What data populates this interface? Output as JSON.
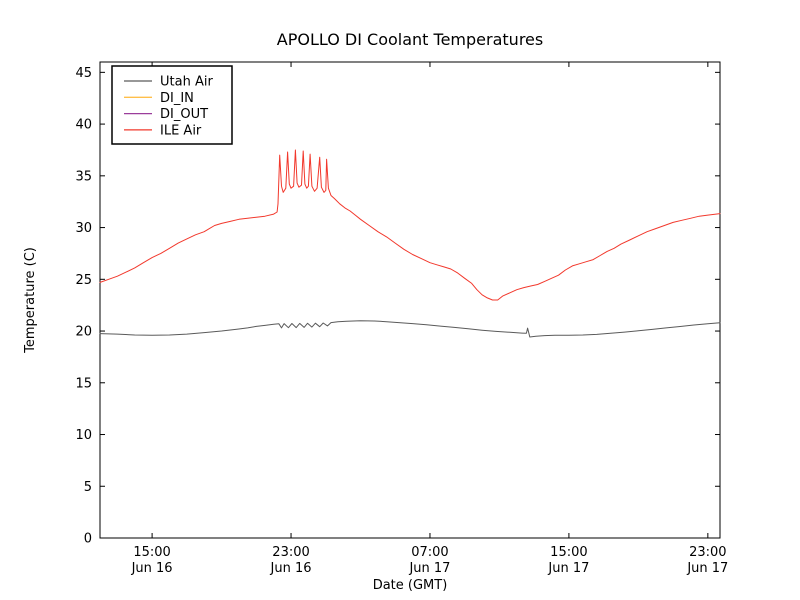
{
  "title": "APOLLO DI Coolant Temperatures",
  "axes": {
    "xlabel": "Date (GMT)",
    "ylabel": "Temperature (C)",
    "background": "#ffffff",
    "frame_color": "#000000"
  },
  "legend": {
    "position": "upper left",
    "entries": [
      "Utah Air",
      "DI_IN",
      "DI_OUT",
      "ILE Air"
    ]
  },
  "chart_data": {
    "type": "line",
    "title": "APOLLO DI Coolant Temperatures",
    "xlabel": "Date (GMT)",
    "ylabel": "Temperature (C)",
    "grid": false,
    "legend_position": "upper left",
    "x_unit": "hours since Jun 16 12:00 GMT",
    "xlim": [
      0,
      35.7
    ],
    "ylim": [
      0,
      46
    ],
    "yticks": [
      0,
      5,
      10,
      15,
      20,
      25,
      30,
      35,
      40,
      45
    ],
    "xticks": [
      {
        "hour": 3,
        "time": "15:00",
        "date": "Jun 16"
      },
      {
        "hour": 11,
        "time": "23:00",
        "date": "Jun 16"
      },
      {
        "hour": 19,
        "time": "07:00",
        "date": "Jun 17"
      },
      {
        "hour": 27,
        "time": "15:00",
        "date": "Jun 17"
      },
      {
        "hour": 35,
        "time": "23:00",
        "date": "Jun 17"
      }
    ],
    "series": [
      {
        "name": "Utah Air",
        "color": "#5a5a5a",
        "points": [
          [
            0,
            19.75
          ],
          [
            1,
            19.7
          ],
          [
            2,
            19.62
          ],
          [
            3,
            19.6
          ],
          [
            4,
            19.62
          ],
          [
            5,
            19.7
          ],
          [
            6,
            19.85
          ],
          [
            7,
            20.0
          ],
          [
            7.5,
            20.1
          ],
          [
            8,
            20.2
          ],
          [
            8.5,
            20.3
          ],
          [
            9,
            20.45
          ],
          [
            9.5,
            20.55
          ],
          [
            10,
            20.65
          ],
          [
            10.3,
            20.7
          ],
          [
            10.45,
            20.3
          ],
          [
            10.6,
            20.72
          ],
          [
            10.85,
            20.32
          ],
          [
            11.05,
            20.73
          ],
          [
            11.3,
            20.33
          ],
          [
            11.5,
            20.74
          ],
          [
            11.75,
            20.35
          ],
          [
            11.95,
            20.75
          ],
          [
            12.2,
            20.38
          ],
          [
            12.4,
            20.76
          ],
          [
            12.65,
            20.42
          ],
          [
            12.85,
            20.78
          ],
          [
            13.1,
            20.5
          ],
          [
            13.3,
            20.82
          ],
          [
            13.7,
            20.9
          ],
          [
            14.2,
            20.95
          ],
          [
            15.0,
            21.0
          ],
          [
            15.8,
            20.97
          ],
          [
            16.5,
            20.9
          ],
          [
            17.2,
            20.82
          ],
          [
            18.0,
            20.72
          ],
          [
            18.8,
            20.6
          ],
          [
            19.6,
            20.48
          ],
          [
            20.4,
            20.35
          ],
          [
            21.2,
            20.22
          ],
          [
            22.0,
            20.08
          ],
          [
            22.8,
            19.97
          ],
          [
            23.6,
            19.88
          ],
          [
            24.3,
            19.8
          ],
          [
            24.55,
            19.78
          ],
          [
            24.62,
            20.28
          ],
          [
            24.75,
            19.42
          ],
          [
            25.1,
            19.5
          ],
          [
            25.6,
            19.56
          ],
          [
            26.2,
            19.6
          ],
          [
            27.0,
            19.6
          ],
          [
            27.8,
            19.62
          ],
          [
            28.6,
            19.68
          ],
          [
            29.4,
            19.78
          ],
          [
            30.2,
            19.9
          ],
          [
            31.0,
            20.02
          ],
          [
            31.8,
            20.16
          ],
          [
            32.6,
            20.3
          ],
          [
            33.4,
            20.44
          ],
          [
            34.2,
            20.58
          ],
          [
            35.0,
            20.7
          ],
          [
            35.7,
            20.8
          ]
        ]
      },
      {
        "name": "DI_IN",
        "color": "#ffbf4a",
        "points": []
      },
      {
        "name": "DI_OUT",
        "color": "#9b3d9b",
        "points": []
      },
      {
        "name": "ILE Air",
        "color": "#f2382c",
        "points": [
          [
            0,
            24.7
          ],
          [
            0.5,
            25.0
          ],
          [
            1,
            25.3
          ],
          [
            1.5,
            25.7
          ],
          [
            2,
            26.1
          ],
          [
            2.5,
            26.6
          ],
          [
            3,
            27.1
          ],
          [
            3.5,
            27.5
          ],
          [
            4,
            28.0
          ],
          [
            4.5,
            28.5
          ],
          [
            5,
            28.9
          ],
          [
            5.5,
            29.3
          ],
          [
            6,
            29.6
          ],
          [
            6.3,
            29.9
          ],
          [
            6.6,
            30.2
          ],
          [
            7,
            30.4
          ],
          [
            7.5,
            30.6
          ],
          [
            8,
            30.8
          ],
          [
            8.5,
            30.9
          ],
          [
            9,
            31.0
          ],
          [
            9.5,
            31.1
          ],
          [
            10.0,
            31.3
          ],
          [
            10.2,
            31.5
          ],
          [
            10.25,
            32.3
          ],
          [
            10.35,
            37.0
          ],
          [
            10.45,
            34.0
          ],
          [
            10.55,
            33.4
          ],
          [
            10.7,
            33.8
          ],
          [
            10.8,
            37.3
          ],
          [
            10.9,
            34.2
          ],
          [
            11.0,
            33.8
          ],
          [
            11.15,
            34.0
          ],
          [
            11.25,
            37.5
          ],
          [
            11.35,
            34.3
          ],
          [
            11.45,
            33.9
          ],
          [
            11.6,
            34.1
          ],
          [
            11.7,
            37.4
          ],
          [
            11.8,
            34.2
          ],
          [
            11.9,
            33.8
          ],
          [
            12.0,
            34.0
          ],
          [
            12.1,
            37.1
          ],
          [
            12.2,
            34.0
          ],
          [
            12.35,
            33.5
          ],
          [
            12.5,
            33.8
          ],
          [
            12.65,
            36.8
          ],
          [
            12.75,
            33.9
          ],
          [
            12.9,
            33.4
          ],
          [
            13.0,
            33.6
          ],
          [
            13.05,
            36.6
          ],
          [
            13.15,
            33.8
          ],
          [
            13.3,
            33.1
          ],
          [
            13.5,
            32.8
          ],
          [
            13.8,
            32.3
          ],
          [
            14.1,
            31.9
          ],
          [
            14.4,
            31.6
          ],
          [
            14.7,
            31.2
          ],
          [
            15.0,
            30.8
          ],
          [
            15.5,
            30.2
          ],
          [
            16.0,
            29.6
          ],
          [
            16.5,
            29.1
          ],
          [
            17.0,
            28.5
          ],
          [
            17.5,
            27.9
          ],
          [
            18.0,
            27.4
          ],
          [
            18.5,
            27.0
          ],
          [
            19.0,
            26.6
          ],
          [
            19.4,
            26.4
          ],
          [
            19.8,
            26.2
          ],
          [
            20.2,
            26.0
          ],
          [
            20.6,
            25.6
          ],
          [
            21.0,
            25.1
          ],
          [
            21.4,
            24.6
          ],
          [
            21.7,
            24.0
          ],
          [
            22.0,
            23.5
          ],
          [
            22.3,
            23.2
          ],
          [
            22.6,
            23.0
          ],
          [
            22.9,
            23.0
          ],
          [
            23.2,
            23.4
          ],
          [
            23.6,
            23.7
          ],
          [
            24.0,
            24.0
          ],
          [
            24.4,
            24.2
          ],
          [
            24.8,
            24.35
          ],
          [
            25.2,
            24.5
          ],
          [
            25.6,
            24.8
          ],
          [
            26.0,
            25.1
          ],
          [
            26.4,
            25.4
          ],
          [
            26.8,
            25.9
          ],
          [
            27.2,
            26.3
          ],
          [
            27.6,
            26.5
          ],
          [
            28.0,
            26.7
          ],
          [
            28.4,
            26.9
          ],
          [
            28.8,
            27.3
          ],
          [
            29.2,
            27.7
          ],
          [
            29.6,
            28.0
          ],
          [
            30.0,
            28.4
          ],
          [
            30.5,
            28.8
          ],
          [
            31.0,
            29.2
          ],
          [
            31.5,
            29.6
          ],
          [
            32.0,
            29.9
          ],
          [
            32.5,
            30.2
          ],
          [
            33.0,
            30.5
          ],
          [
            33.5,
            30.7
          ],
          [
            34.0,
            30.9
          ],
          [
            34.5,
            31.1
          ],
          [
            35.0,
            31.2
          ],
          [
            35.7,
            31.35
          ]
        ]
      }
    ]
  }
}
